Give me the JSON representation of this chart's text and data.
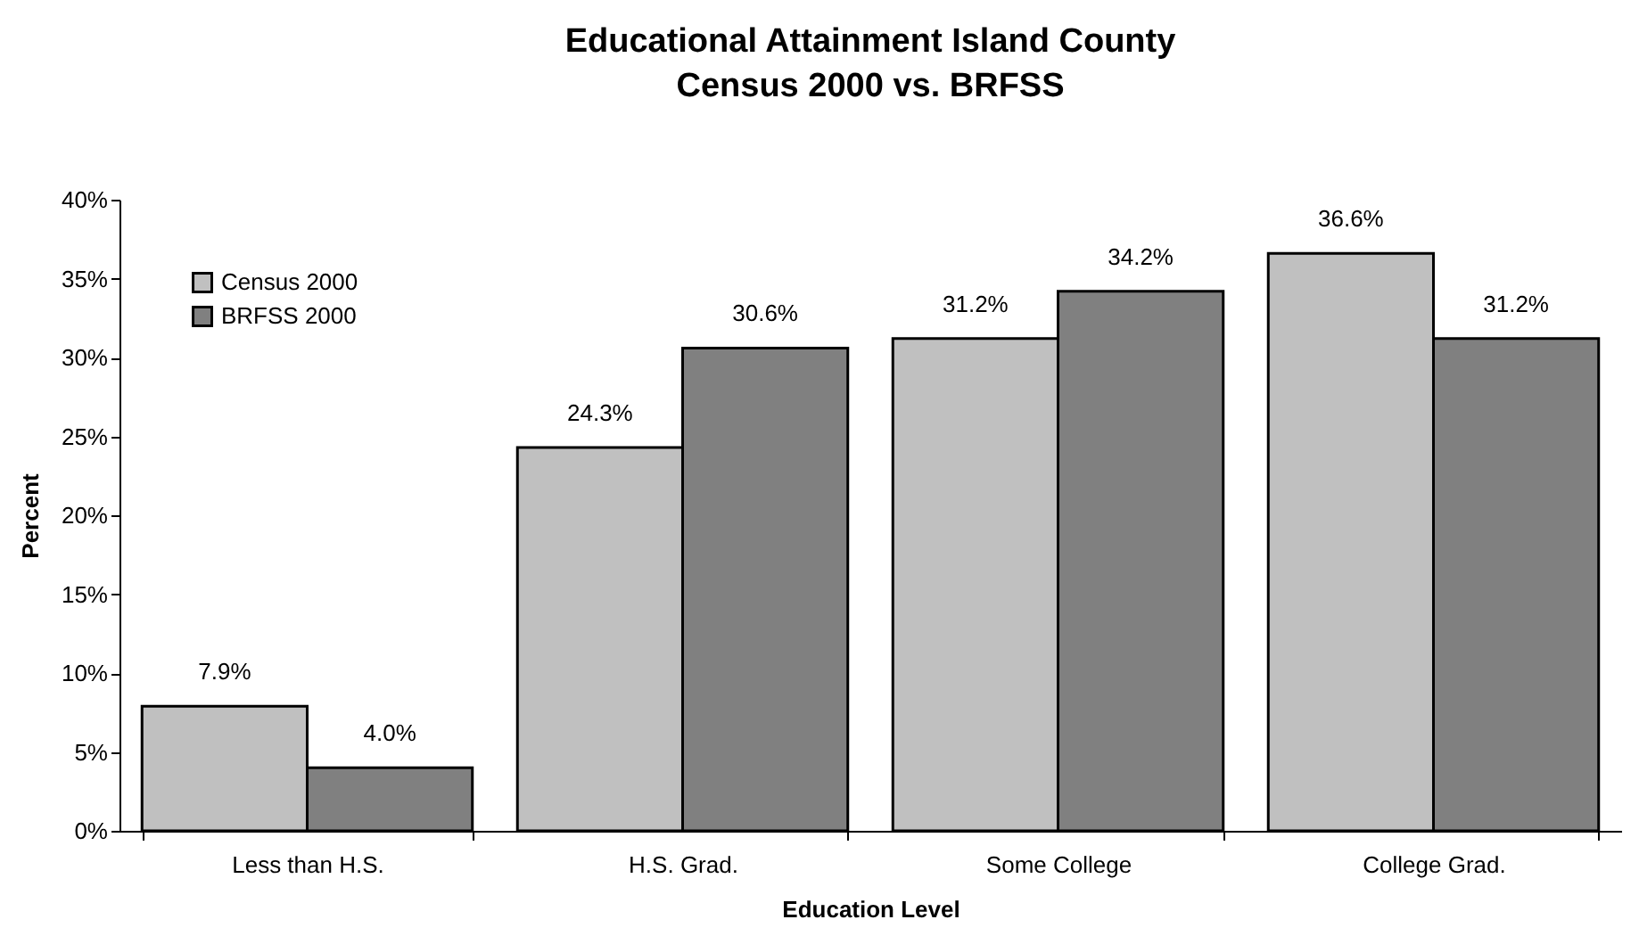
{
  "chart_data": {
    "type": "bar",
    "title": "Educational Attainment Island County",
    "subtitle": "Census 2000 vs. BRFSS",
    "xlabel": "Education Level",
    "ylabel": "Percent",
    "categories": [
      "Less than H.S.",
      "H.S. Grad.",
      "Some College",
      "College Grad."
    ],
    "series": [
      {
        "name": "Census 2000",
        "color": "#c0c0c0",
        "values": [
          7.9,
          24.3,
          31.2,
          36.6
        ],
        "value_labels": [
          "7.9%",
          "24.3%",
          "31.2%",
          "36.6%"
        ]
      },
      {
        "name": "BRFSS 2000",
        "color": "#808080",
        "values": [
          4.0,
          30.6,
          34.2,
          31.2
        ],
        "value_labels": [
          "4.0%",
          "30.6%",
          "34.2%",
          "31.2%"
        ]
      }
    ],
    "ylim": [
      0,
      40
    ],
    "yticks": [
      {
        "value": 0,
        "label": "0%"
      },
      {
        "value": 5,
        "label": "5%"
      },
      {
        "value": 10,
        "label": "10%"
      },
      {
        "value": 15,
        "label": "15%"
      },
      {
        "value": 20,
        "label": "20%"
      },
      {
        "value": 25,
        "label": "25%"
      },
      {
        "value": 30,
        "label": "30%"
      },
      {
        "value": 35,
        "label": "35%"
      },
      {
        "value": 40,
        "label": "40%"
      }
    ],
    "legend": "top left",
    "grid": false
  }
}
